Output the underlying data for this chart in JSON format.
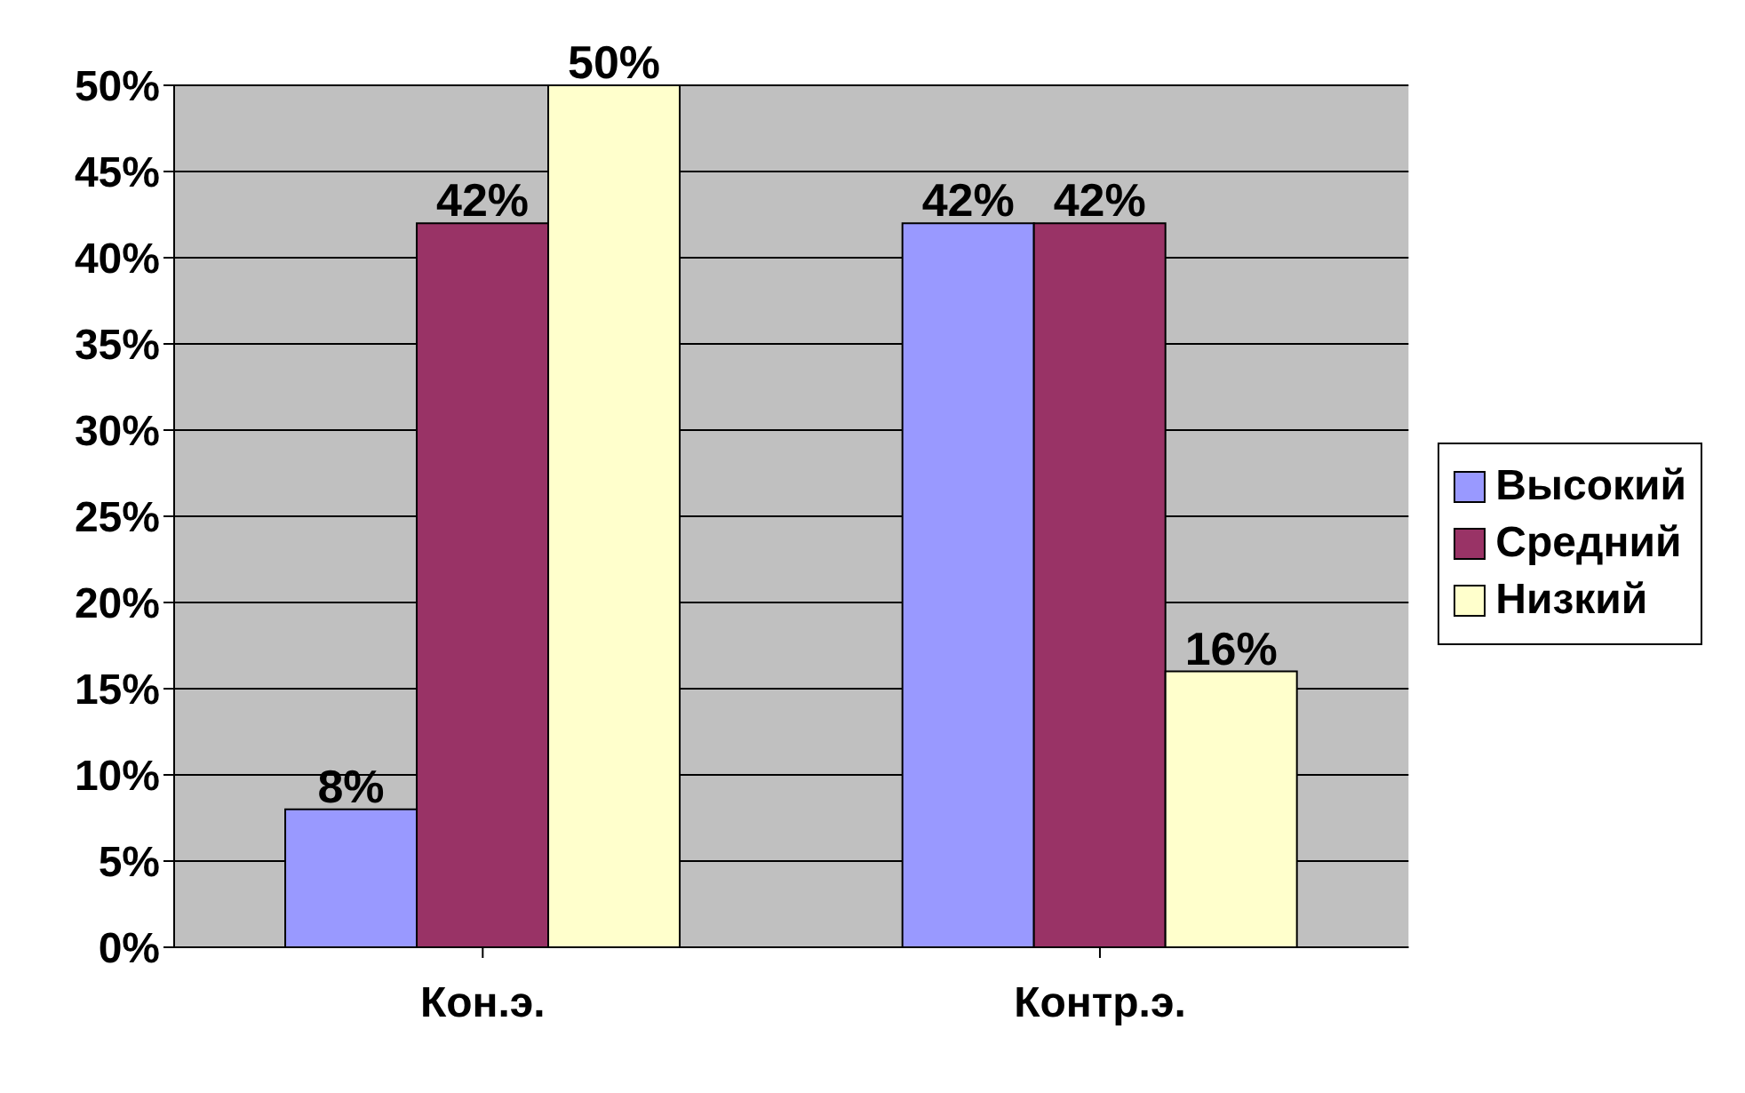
{
  "chart_data": {
    "type": "bar",
    "categories": [
      "Кон.э.",
      "Контр.э."
    ],
    "series": [
      {
        "name": "Высокий",
        "color": "#9999ff",
        "values": [
          8,
          42
        ],
        "value_labels": [
          "8%",
          "42%"
        ]
      },
      {
        "name": "Средний",
        "color": "#993366",
        "values": [
          42,
          42
        ],
        "value_labels": [
          "42%",
          "42%"
        ]
      },
      {
        "name": "Низкий",
        "color": "#ffffcc",
        "values": [
          50,
          16
        ],
        "value_labels": [
          "50%",
          "16%"
        ]
      }
    ],
    "ylim": [
      0,
      50
    ],
    "yticks": [
      {
        "value": 0,
        "label": "0%"
      },
      {
        "value": 5,
        "label": "5%"
      },
      {
        "value": 10,
        "label": "10%"
      },
      {
        "value": 15,
        "label": "15%"
      },
      {
        "value": 20,
        "label": "20%"
      },
      {
        "value": 25,
        "label": "25%"
      },
      {
        "value": 30,
        "label": "30%"
      },
      {
        "value": 35,
        "label": "35%"
      },
      {
        "value": 40,
        "label": "40%"
      },
      {
        "value": 45,
        "label": "45%"
      },
      {
        "value": 50,
        "label": "50%"
      }
    ],
    "grid": "y",
    "legend": "right"
  }
}
